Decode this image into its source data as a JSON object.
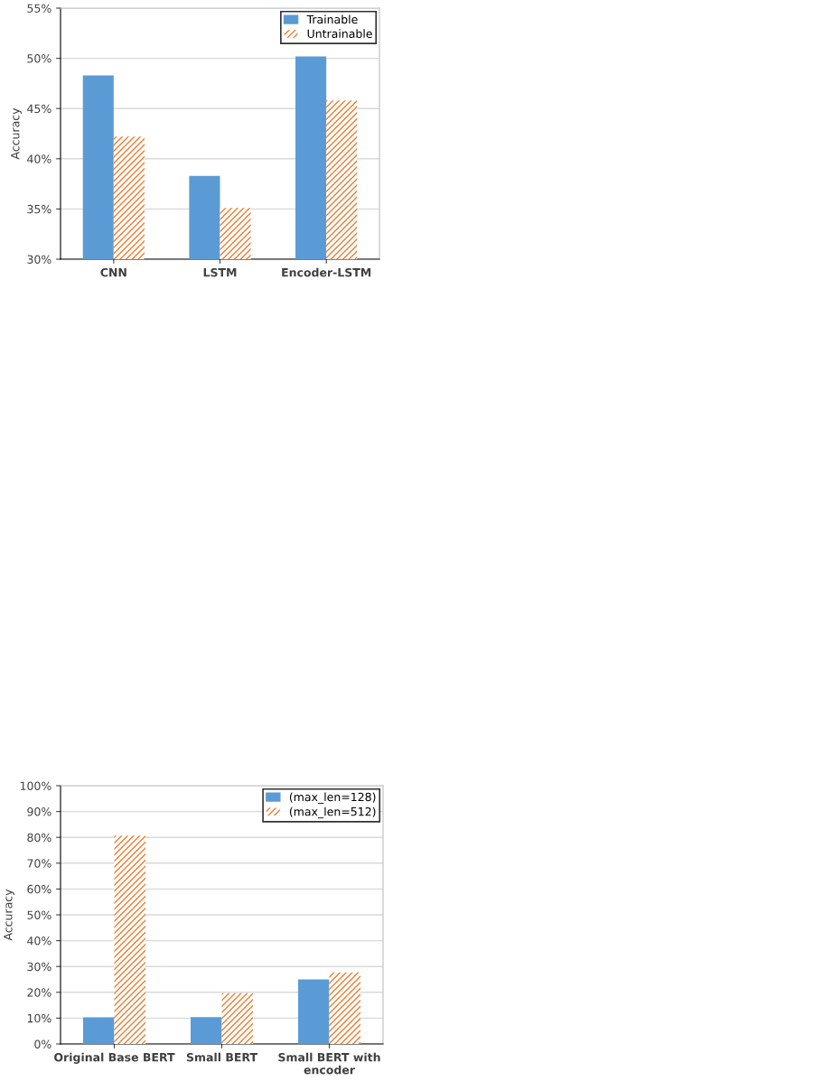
{
  "chart_data": [
    {
      "type": "bar",
      "ylabel": "Accuracy",
      "categories": [
        "CNN",
        "LSTM",
        "Encoder-LSTM"
      ],
      "series": [
        {
          "name": "Trainable",
          "color": "#5b9bd5",
          "values": [
            48.3,
            38.3,
            50.2
          ]
        },
        {
          "name": "Untrainable",
          "color": "#ed7d31",
          "values": [
            42.2,
            35.1,
            45.8
          ]
        }
      ],
      "ylim": [
        30,
        55
      ],
      "yticks": [
        {
          "value": 30,
          "label": "30%"
        },
        {
          "value": 35,
          "label": "35%"
        },
        {
          "value": 40,
          "label": "40%"
        },
        {
          "value": 45,
          "label": "45%"
        },
        {
          "value": 50,
          "label": "50%"
        },
        {
          "value": 55,
          "label": "55%"
        }
      ],
      "grid": "y",
      "legend": "top right"
    },
    {
      "type": "bar",
      "ylabel": "Accuracy",
      "categories": [
        "Original Base BERT",
        "Small BERT",
        "Small BERT with\nencoder"
      ],
      "series": [
        {
          "name": "(max_len=128)",
          "color": "#5b9bd5",
          "values": [
            10.3,
            10.4,
            25.0
          ]
        },
        {
          "name": "(max_len=512)",
          "color": "#ed7d31",
          "values": [
            80.7,
            19.7,
            27.7
          ]
        }
      ],
      "ylim": [
        0,
        100
      ],
      "yticks": [
        {
          "value": 0,
          "label": "0%"
        },
        {
          "value": 10,
          "label": "10%"
        },
        {
          "value": 20,
          "label": "20%"
        },
        {
          "value": 30,
          "label": "30%"
        },
        {
          "value": 40,
          "label": "40%"
        },
        {
          "value": 50,
          "label": "50%"
        },
        {
          "value": 60,
          "label": "60%"
        },
        {
          "value": 70,
          "label": "70%"
        },
        {
          "value": 80,
          "label": "80%"
        },
        {
          "value": 90,
          "label": "90%"
        },
        {
          "value": 100,
          "label": "100%"
        }
      ],
      "grid": "y",
      "legend": "top right"
    }
  ]
}
